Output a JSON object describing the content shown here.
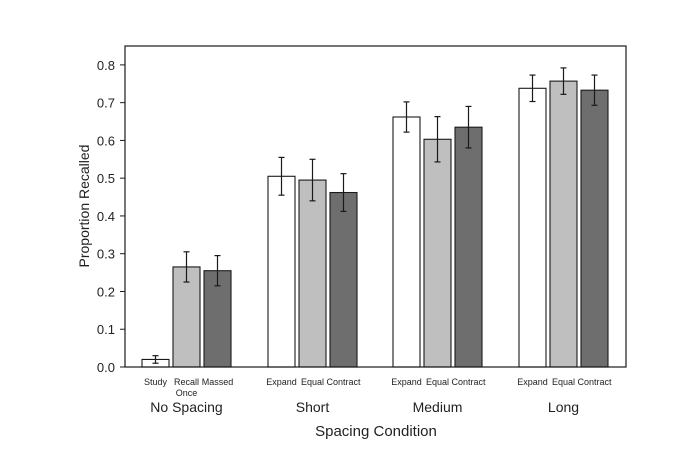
{
  "chart_data": {
    "type": "bar",
    "title": "",
    "xlabel": "Spacing Condition",
    "ylabel": "Proportion Recalled",
    "ylim": [
      0,
      0.85
    ],
    "yticks": [
      "0.0",
      "0.1",
      "0.2",
      "0.3",
      "0.4",
      "0.5",
      "0.6",
      "0.7",
      "0.8"
    ],
    "grid": false,
    "colors": {
      "white": "#ffffff",
      "light": "#bfbfbf",
      "dark": "#6e6e6e",
      "outline": "#1a1a1a"
    },
    "groups": [
      {
        "label": "No Spacing",
        "bars": [
          {
            "label": "Study",
            "label2": "",
            "value": 0.02,
            "err": 0.01,
            "shade": "white"
          },
          {
            "label": "Recall",
            "label2": "Once",
            "value": 0.265,
            "err": 0.04,
            "shade": "light"
          },
          {
            "label": "Massed",
            "label2": "",
            "value": 0.255,
            "err": 0.04,
            "shade": "dark"
          }
        ]
      },
      {
        "label": "Short",
        "bars": [
          {
            "label": "Expand",
            "label2": "",
            "value": 0.505,
            "err": 0.05,
            "shade": "white"
          },
          {
            "label": "Equal",
            "label2": "",
            "value": 0.495,
            "err": 0.055,
            "shade": "light"
          },
          {
            "label": "Contract",
            "label2": "",
            "value": 0.462,
            "err": 0.05,
            "shade": "dark"
          }
        ]
      },
      {
        "label": "Medium",
        "bars": [
          {
            "label": "Expand",
            "label2": "",
            "value": 0.662,
            "err": 0.04,
            "shade": "white"
          },
          {
            "label": "Equal",
            "label2": "",
            "value": 0.603,
            "err": 0.06,
            "shade": "light"
          },
          {
            "label": "Contract",
            "label2": "",
            "value": 0.635,
            "err": 0.055,
            "shade": "dark"
          }
        ]
      },
      {
        "label": "Long",
        "bars": [
          {
            "label": "Expand",
            "label2": "",
            "value": 0.738,
            "err": 0.035,
            "shade": "white"
          },
          {
            "label": "Equal",
            "label2": "",
            "value": 0.757,
            "err": 0.035,
            "shade": "light"
          },
          {
            "label": "Contract",
            "label2": "",
            "value": 0.733,
            "err": 0.04,
            "shade": "dark"
          }
        ]
      }
    ]
  }
}
